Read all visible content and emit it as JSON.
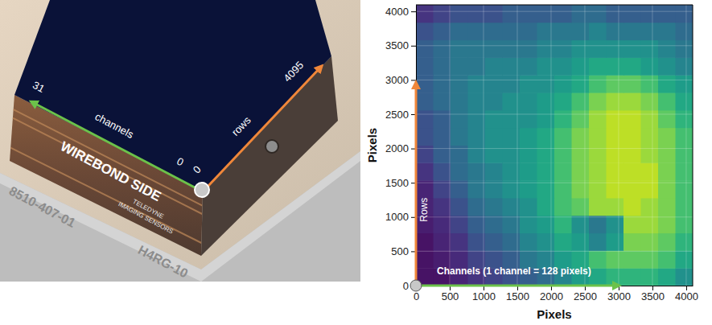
{
  "chart_data": {
    "type": "heatmap",
    "x_label": "Pixels",
    "y_label": "Pixels",
    "xlim": [
      0,
      4096
    ],
    "ylim": [
      0,
      4096
    ],
    "xticks": [
      0,
      500,
      1000,
      1500,
      2000,
      2500,
      3000,
      3500,
      4000
    ],
    "yticks": [
      0,
      500,
      1000,
      1500,
      2000,
      2500,
      3000,
      3500,
      4000
    ],
    "grid": true,
    "zlim": [
      0,
      1
    ],
    "annotations": [
      "Rows",
      "Channels (1 channel = 128 pixels)"
    ],
    "z": [
      [
        0.05,
        0.05,
        0.1,
        0.15,
        0.2,
        0.25,
        0.3,
        0.35,
        0.45,
        0.55,
        0.6,
        0.65,
        0.65,
        0.65,
        0.6,
        0.5
      ],
      [
        0.05,
        0.08,
        0.12,
        0.2,
        0.25,
        0.3,
        0.4,
        0.45,
        0.55,
        0.6,
        0.7,
        0.75,
        0.75,
        0.75,
        0.7,
        0.6
      ],
      [
        0.05,
        0.1,
        0.15,
        0.25,
        0.3,
        0.35,
        0.45,
        0.5,
        0.6,
        0.55,
        0.45,
        0.55,
        0.8,
        0.8,
        0.75,
        0.65
      ],
      [
        0.08,
        0.12,
        0.2,
        0.3,
        0.35,
        0.4,
        0.5,
        0.55,
        0.65,
        0.5,
        0.4,
        0.5,
        0.85,
        0.85,
        0.8,
        0.7
      ],
      [
        0.1,
        0.15,
        0.25,
        0.35,
        0.4,
        0.45,
        0.5,
        0.6,
        0.7,
        0.75,
        0.85,
        0.85,
        0.9,
        0.85,
        0.8,
        0.7
      ],
      [
        0.1,
        0.2,
        0.3,
        0.4,
        0.45,
        0.5,
        0.55,
        0.6,
        0.7,
        0.8,
        0.85,
        0.9,
        0.9,
        0.9,
        0.8,
        0.7
      ],
      [
        0.15,
        0.25,
        0.35,
        0.4,
        0.45,
        0.5,
        0.55,
        0.6,
        0.7,
        0.8,
        0.85,
        0.9,
        0.9,
        0.9,
        0.8,
        0.7
      ],
      [
        0.2,
        0.3,
        0.35,
        0.45,
        0.5,
        0.5,
        0.55,
        0.6,
        0.7,
        0.8,
        0.85,
        0.9,
        0.9,
        0.85,
        0.8,
        0.7
      ],
      [
        0.25,
        0.3,
        0.4,
        0.45,
        0.5,
        0.5,
        0.55,
        0.6,
        0.7,
        0.8,
        0.85,
        0.9,
        0.9,
        0.85,
        0.8,
        0.7
      ],
      [
        0.25,
        0.3,
        0.4,
        0.45,
        0.5,
        0.5,
        0.5,
        0.55,
        0.65,
        0.75,
        0.85,
        0.9,
        0.9,
        0.85,
        0.75,
        0.65
      ],
      [
        0.3,
        0.35,
        0.4,
        0.45,
        0.45,
        0.5,
        0.5,
        0.55,
        0.6,
        0.7,
        0.8,
        0.85,
        0.85,
        0.8,
        0.7,
        0.6
      ],
      [
        0.3,
        0.35,
        0.4,
        0.45,
        0.45,
        0.45,
        0.5,
        0.5,
        0.55,
        0.6,
        0.7,
        0.75,
        0.75,
        0.7,
        0.6,
        0.55
      ],
      [
        0.3,
        0.35,
        0.4,
        0.4,
        0.45,
        0.45,
        0.45,
        0.5,
        0.5,
        0.55,
        0.6,
        0.6,
        0.6,
        0.55,
        0.5,
        0.45
      ],
      [
        0.3,
        0.35,
        0.4,
        0.4,
        0.4,
        0.4,
        0.4,
        0.45,
        0.45,
        0.5,
        0.5,
        0.5,
        0.5,
        0.5,
        0.45,
        0.4
      ],
      [
        0.25,
        0.3,
        0.35,
        0.35,
        0.35,
        0.35,
        0.35,
        0.4,
        0.4,
        0.4,
        0.45,
        0.4,
        0.4,
        0.4,
        0.4,
        0.35
      ],
      [
        0.15,
        0.2,
        0.25,
        0.25,
        0.25,
        0.3,
        0.3,
        0.3,
        0.3,
        0.35,
        0.35,
        0.3,
        0.3,
        0.3,
        0.3,
        0.3
      ]
    ]
  },
  "photo": {
    "channels_end": "31",
    "channels_label": "channels",
    "channels_start": "0",
    "rows_start": "0",
    "rows_label": "rows",
    "rows_end": "4095",
    "side_label": "WIREBOND SIDE",
    "maker": [
      "TELEDYNE",
      "IMAGING SENSORS"
    ],
    "part_number": "8510-407-01",
    "model": "H4RG-10"
  }
}
